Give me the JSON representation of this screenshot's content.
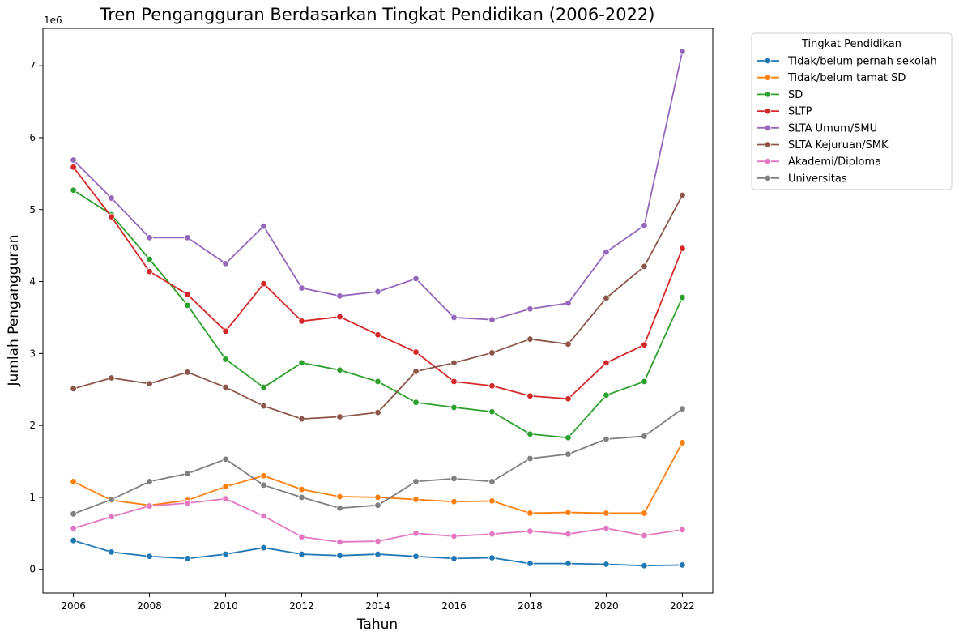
{
  "chart_data": {
    "type": "line",
    "title": "Tren Pengangguran Berdasarkan Tingkat Pendidikan (2006-2022)",
    "xlabel": "Tahun",
    "ylabel": "Jumlah Pengangguran",
    "y_offset_label": "1e6",
    "x": [
      2006,
      2007,
      2008,
      2009,
      2010,
      2011,
      2012,
      2013,
      2014,
      2015,
      2016,
      2017,
      2018,
      2019,
      2020,
      2021,
      2022
    ],
    "xlim": [
      2005.2,
      2022.8
    ],
    "ylim": [
      -0.33,
      7.52
    ],
    "x_ticks": [
      2006,
      2008,
      2010,
      2012,
      2014,
      2016,
      2018,
      2020,
      2022
    ],
    "y_ticks": [
      0,
      1,
      2,
      3,
      4,
      5,
      6,
      7
    ],
    "grid": false,
    "legend": {
      "title": "Tingkat Pendidikan",
      "placement": "outside-top-right"
    },
    "series": [
      {
        "name": "Tidak/belum pernah sekolah",
        "color": "#1f77b4",
        "values": [
          0.4,
          0.24,
          0.18,
          0.15,
          0.21,
          0.3,
          0.21,
          0.19,
          0.21,
          0.18,
          0.15,
          0.16,
          0.08,
          0.08,
          0.07,
          0.05,
          0.06
        ]
      },
      {
        "name": "Tidak/belum tamat SD",
        "color": "#ff7f0e",
        "values": [
          1.22,
          0.96,
          0.89,
          0.96,
          1.15,
          1.3,
          1.11,
          1.01,
          1.0,
          0.97,
          0.94,
          0.95,
          0.78,
          0.79,
          0.78,
          0.78,
          1.76
        ]
      },
      {
        "name": "SD",
        "color": "#2ca02c",
        "values": [
          5.27,
          4.93,
          4.31,
          3.67,
          2.92,
          2.53,
          2.87,
          2.77,
          2.61,
          2.32,
          2.25,
          2.19,
          1.88,
          1.83,
          2.42,
          2.61,
          3.78
        ]
      },
      {
        "name": "SLTP",
        "color": "#d62728",
        "values": [
          5.59,
          4.9,
          4.14,
          3.82,
          3.31,
          3.97,
          3.45,
          3.51,
          3.26,
          3.02,
          2.61,
          2.55,
          2.41,
          2.37,
          2.87,
          3.12,
          4.46
        ]
      },
      {
        "name": "SLTA Umum/SMU",
        "color": "#9467bd",
        "values": [
          5.69,
          5.16,
          4.61,
          4.61,
          4.25,
          4.77,
          3.91,
          3.8,
          3.86,
          4.04,
          3.5,
          3.47,
          3.62,
          3.7,
          4.41,
          4.78,
          7.2
        ]
      },
      {
        "name": "SLTA Kejuruan/SMK",
        "color": "#8c564b",
        "values": [
          2.51,
          2.66,
          2.58,
          2.74,
          2.53,
          2.27,
          2.09,
          2.12,
          2.18,
          2.75,
          2.87,
          3.01,
          3.2,
          3.13,
          3.77,
          4.21,
          5.2
        ]
      },
      {
        "name": "Akademi/Diploma",
        "color": "#e377c2",
        "values": [
          0.57,
          0.73,
          0.88,
          0.92,
          0.98,
          0.74,
          0.45,
          0.38,
          0.39,
          0.5,
          0.46,
          0.49,
          0.53,
          0.49,
          0.57,
          0.47,
          0.55
        ]
      },
      {
        "name": "Universitas",
        "color": "#7f7f7f",
        "values": [
          0.77,
          0.97,
          1.22,
          1.33,
          1.53,
          1.17,
          1.0,
          0.85,
          0.89,
          1.22,
          1.26,
          1.22,
          1.54,
          1.6,
          1.81,
          1.85,
          2.23
        ]
      }
    ]
  }
}
